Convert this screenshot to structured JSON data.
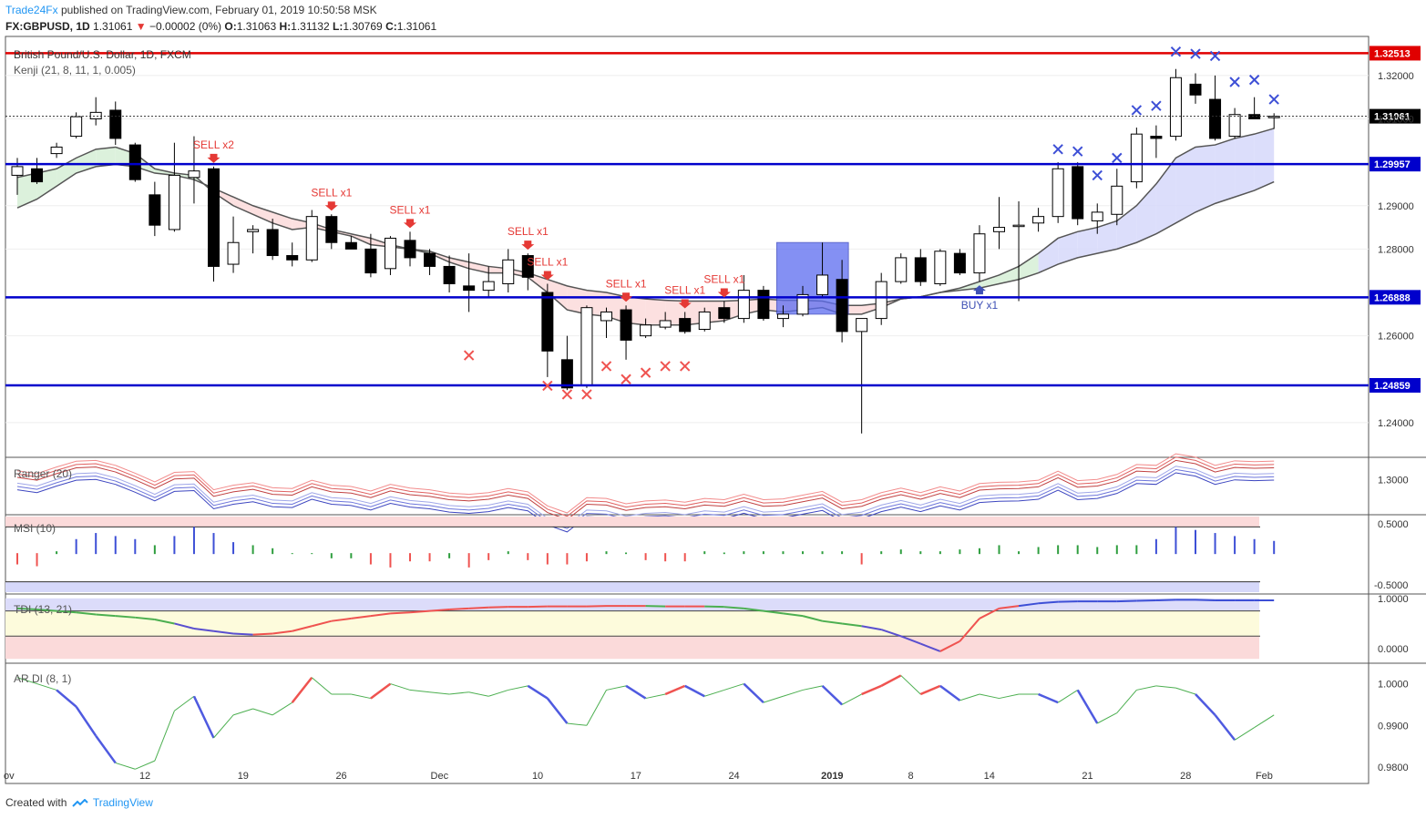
{
  "header": {
    "publisher": "Trade24Fx",
    "published_text": "published on TradingView.com, February 01, 2019 10:50:58 MSK"
  },
  "symbol_line": {
    "symbol": "FX:GBPUSD, 1D",
    "last": "1.31061",
    "change": "−0.00002 (0%)",
    "o_label": "O:",
    "o": "1.31063",
    "h_label": "H:",
    "h": "1.31132",
    "l_label": "L:",
    "l": "1.30769",
    "c_label": "C:",
    "c": "1.31061"
  },
  "footer": {
    "text": "Created with",
    "brand": "TradingView"
  },
  "colors": {
    "up_candle": "#ffffff",
    "down_candle": "#000000",
    "level_line": "#0000cc",
    "resistance_line": "#e00000",
    "sell_signal": "#e53935",
    "buy_signal": "#3f51b5"
  },
  "chart_data": {
    "type": "candlestick",
    "title": "British Pound/U.S. Dollar, 1D, FXCM",
    "indicator_label": "Kenji (21, 8, 11, 1, 0.005)",
    "y_range": [
      1.232,
      1.329
    ],
    "y_ticks": [
      "1.32000",
      "1.31000",
      "1.29000",
      "1.28000",
      "1.26000",
      "1.24000"
    ],
    "x_ticks": [
      "12",
      "19",
      "26",
      "Dec",
      "10",
      "17",
      "24",
      "2019",
      "8",
      "14",
      "21",
      "28",
      "Feb"
    ],
    "x_edge_label": "ov",
    "candles": [
      [
        1.297,
        1.301,
        1.2925,
        1.299
      ],
      [
        1.2985,
        1.301,
        1.295,
        1.2955
      ],
      [
        1.302,
        1.3045,
        1.301,
        1.3035
      ],
      [
        1.306,
        1.3115,
        1.3055,
        1.3105
      ],
      [
        1.31,
        1.315,
        1.3085,
        1.3115
      ],
      [
        1.312,
        1.314,
        1.304,
        1.3055
      ],
      [
        1.304,
        1.3045,
        1.2955,
        1.296
      ],
      [
        1.2925,
        1.2955,
        1.283,
        1.2855
      ],
      [
        1.2845,
        1.3045,
        1.284,
        1.297
      ],
      [
        1.2965,
        1.306,
        1.2905,
        1.298
      ],
      [
        1.2985,
        1.299,
        1.2725,
        1.276
      ],
      [
        1.2765,
        1.2875,
        1.2745,
        1.2815
      ],
      [
        1.284,
        1.2855,
        1.279,
        1.2845
      ],
      [
        1.2845,
        1.287,
        1.2775,
        1.2785
      ],
      [
        1.2785,
        1.2815,
        1.276,
        1.2775
      ],
      [
        1.2775,
        1.289,
        1.277,
        1.2875
      ],
      [
        1.2875,
        1.288,
        1.28,
        1.2815
      ],
      [
        1.2815,
        1.283,
        1.28,
        1.28
      ],
      [
        1.28,
        1.2835,
        1.2735,
        1.2745
      ],
      [
        1.2755,
        1.283,
        1.274,
        1.2825
      ],
      [
        1.282,
        1.284,
        1.276,
        1.278
      ],
      [
        1.279,
        1.28,
        1.274,
        1.276
      ],
      [
        1.276,
        1.2785,
        1.27,
        1.272
      ],
      [
        1.2715,
        1.279,
        1.2655,
        1.2705
      ],
      [
        1.2705,
        1.276,
        1.269,
        1.2725
      ],
      [
        1.272,
        1.28,
        1.27,
        1.2775
      ],
      [
        1.2785,
        1.279,
        1.2705,
        1.2735
      ],
      [
        1.27,
        1.272,
        1.2505,
        1.2565
      ],
      [
        1.2545,
        1.26,
        1.2475,
        1.248
      ],
      [
        1.2485,
        1.267,
        1.248,
        1.2665
      ],
      [
        1.2635,
        1.2665,
        1.2595,
        1.2655
      ],
      [
        1.266,
        1.267,
        1.2545,
        1.259
      ],
      [
        1.26,
        1.264,
        1.2595,
        1.2625
      ],
      [
        1.262,
        1.2655,
        1.2615,
        1.2635
      ],
      [
        1.264,
        1.2655,
        1.2605,
        1.261
      ],
      [
        1.2615,
        1.2665,
        1.261,
        1.2655
      ],
      [
        1.2665,
        1.268,
        1.263,
        1.264
      ],
      [
        1.264,
        1.274,
        1.263,
        1.2705
      ],
      [
        1.2705,
        1.2715,
        1.2635,
        1.264
      ],
      [
        1.264,
        1.267,
        1.262,
        1.265
      ],
      [
        1.265,
        1.2715,
        1.2645,
        1.2695
      ],
      [
        1.2695,
        1.2815,
        1.269,
        1.274
      ],
      [
        1.273,
        1.2775,
        1.2585,
        1.261
      ],
      [
        1.261,
        1.264,
        1.2375,
        1.264
      ],
      [
        1.264,
        1.2745,
        1.2625,
        1.2725
      ],
      [
        1.2725,
        1.279,
        1.272,
        1.278
      ],
      [
        1.278,
        1.28,
        1.2715,
        1.2725
      ],
      [
        1.272,
        1.28,
        1.2715,
        1.2795
      ],
      [
        1.279,
        1.28,
        1.274,
        1.2745
      ],
      [
        1.2745,
        1.2855,
        1.2725,
        1.2835
      ],
      [
        1.284,
        1.292,
        1.28,
        1.285
      ],
      [
        1.2855,
        1.291,
        1.268,
        1.2855
      ],
      [
        1.286,
        1.2895,
        1.284,
        1.2875
      ],
      [
        1.2875,
        1.3,
        1.286,
        1.2985
      ],
      [
        1.299,
        1.3,
        1.2855,
        1.287
      ],
      [
        1.2865,
        1.2905,
        1.2835,
        1.2885
      ],
      [
        1.288,
        1.2985,
        1.2855,
        1.2945
      ],
      [
        1.2955,
        1.308,
        1.294,
        1.3065
      ],
      [
        1.306,
        1.3085,
        1.301,
        1.3055
      ],
      [
        1.306,
        1.3215,
        1.305,
        1.3195
      ],
      [
        1.318,
        1.3205,
        1.3135,
        1.3155
      ],
      [
        1.3145,
        1.32,
        1.305,
        1.3055
      ],
      [
        1.306,
        1.3125,
        1.3055,
        1.311
      ],
      [
        1.311,
        1.315,
        1.31,
        1.31
      ],
      [
        1.3106,
        1.3113,
        1.3077,
        1.3106
      ]
    ],
    "kenji_fast": [
      1.2965,
      1.2975,
      1.2985,
      1.301,
      1.303,
      1.3035,
      1.302,
      1.2985,
      1.2975,
      1.297,
      1.293,
      1.29,
      1.288,
      1.286,
      1.2845,
      1.285,
      1.284,
      1.283,
      1.281,
      1.2805,
      1.28,
      1.279,
      1.277,
      1.2755,
      1.2745,
      1.2745,
      1.2735,
      1.27,
      1.266,
      1.265,
      1.2645,
      1.263,
      1.2625,
      1.2625,
      1.2625,
      1.263,
      1.2635,
      1.265,
      1.266,
      1.2655,
      1.266,
      1.2665,
      1.265,
      1.265,
      1.2665,
      1.2685,
      1.269,
      1.27,
      1.271,
      1.2725,
      1.274,
      1.276,
      1.279,
      1.2825,
      1.284,
      1.285,
      1.2865,
      1.29,
      1.295,
      1.301,
      1.3035,
      1.304,
      1.3055,
      1.3065,
      1.3078
    ],
    "kenji_slow": [
      1.2895,
      1.2915,
      1.2945,
      1.2975,
      1.299,
      1.2995,
      1.299,
      1.2975,
      1.297,
      1.296,
      1.294,
      1.292,
      1.29,
      1.2885,
      1.287,
      1.286,
      1.2845,
      1.2835,
      1.2825,
      1.281,
      1.28,
      1.2795,
      1.278,
      1.277,
      1.276,
      1.2755,
      1.2745,
      1.273,
      1.2715,
      1.2705,
      1.27,
      1.269,
      1.2685,
      1.2682,
      1.268,
      1.268,
      1.268,
      1.2682,
      1.2685,
      1.2682,
      1.2682,
      1.268,
      1.267,
      1.267,
      1.2675,
      1.2685,
      1.269,
      1.27,
      1.2705,
      1.271,
      1.272,
      1.273,
      1.2745,
      1.2765,
      1.278,
      1.279,
      1.28,
      1.2815,
      1.2835,
      1.286,
      1.2885,
      1.2905,
      1.292,
      1.2935,
      1.2955
    ],
    "levels": [
      {
        "value": 1.32513,
        "label": "1.32513",
        "kind": "resistance"
      },
      {
        "value": 1.29957,
        "label": "1.29957",
        "kind": "level"
      },
      {
        "value": 1.26888,
        "label": "1.26888",
        "kind": "level"
      },
      {
        "value": 1.24859,
        "label": "1.24859",
        "kind": "level"
      }
    ],
    "last_price": {
      "value": 1.31061,
      "label": "1.31061"
    },
    "sell_signals": [
      {
        "bar": 10,
        "text": "SELL x2"
      },
      {
        "bar": 16,
        "text": "SELL x1"
      },
      {
        "bar": 20,
        "text": "SELL x1"
      },
      {
        "bar": 26,
        "text": "SELL x1"
      },
      {
        "bar": 27,
        "text": "SELL x1"
      },
      {
        "bar": 31,
        "text": "SELL x1"
      },
      {
        "bar": 34,
        "text": "SELL x1"
      },
      {
        "bar": 36,
        "text": "SELL x1"
      }
    ],
    "buy_signals": [
      {
        "bar": 49,
        "text": "BUY x1"
      }
    ],
    "x_marks_red": [
      [
        23,
        1.2555
      ],
      [
        27,
        1.2485
      ],
      [
        28,
        1.2465
      ],
      [
        29,
        1.2465
      ],
      [
        30,
        1.253
      ],
      [
        31,
        1.25
      ],
      [
        32,
        1.2515
      ],
      [
        33,
        1.253
      ],
      [
        34,
        1.253
      ]
    ],
    "x_marks_blue": [
      [
        53,
        1.303
      ],
      [
        54,
        1.3025
      ],
      [
        55,
        1.297
      ],
      [
        56,
        1.301
      ],
      [
        57,
        1.312
      ],
      [
        58,
        1.313
      ],
      [
        59,
        1.3255
      ],
      [
        60,
        1.325
      ],
      [
        61,
        1.3245
      ],
      [
        62,
        1.3185
      ],
      [
        63,
        1.319
      ],
      [
        64,
        1.3145
      ]
    ],
    "panels": [
      {
        "name": "Ranger (20)",
        "labels": [
          "1.3000"
        ]
      },
      {
        "name": "MSI (10)",
        "labels": [
          "0.5000",
          "-0.5000"
        ]
      },
      {
        "name": "TDI (13, 21)",
        "labels": [
          "1.0000",
          "0.0000"
        ]
      },
      {
        "name": "AR DI (8, 1)",
        "labels": [
          "1.0000",
          "0.9900",
          "0.9800"
        ]
      }
    ],
    "msi": [
      -0.15,
      -0.18,
      0.05,
      0.25,
      0.35,
      0.3,
      0.25,
      0.15,
      0.3,
      0.45,
      0.35,
      0.2,
      0.15,
      0.1,
      0.02,
      0.02,
      -0.05,
      -0.05,
      -0.15,
      -0.2,
      -0.1,
      -0.1,
      -0.05,
      -0.2,
      -0.08,
      0.05,
      -0.08,
      -0.15,
      -0.15,
      -0.1,
      0.05,
      0.03,
      -0.08,
      -0.1,
      -0.1,
      0.05,
      0.03,
      0.05,
      0.05,
      0.05,
      0.05,
      0.05,
      0.05,
      -0.15,
      0.05,
      0.08,
      0.05,
      0.05,
      0.08,
      0.1,
      0.15,
      0.05,
      0.12,
      0.15,
      0.15,
      0.12,
      0.15,
      0.15,
      0.25,
      0.45,
      0.4,
      0.35,
      0.3,
      0.25,
      0.22
    ],
    "tdi": [
      0.8,
      0.78,
      0.75,
      0.72,
      0.68,
      0.65,
      0.62,
      0.58,
      0.5,
      0.4,
      0.35,
      0.3,
      0.28,
      0.3,
      0.35,
      0.45,
      0.55,
      0.6,
      0.65,
      0.7,
      0.72,
      0.75,
      0.78,
      0.8,
      0.82,
      0.83,
      0.83,
      0.84,
      0.84,
      0.84,
      0.85,
      0.85,
      0.85,
      0.84,
      0.84,
      0.84,
      0.83,
      0.8,
      0.75,
      0.7,
      0.65,
      0.55,
      0.5,
      0.45,
      0.38,
      0.25,
      0.1,
      -0.05,
      0.15,
      0.6,
      0.8,
      0.85,
      0.9,
      0.93,
      0.94,
      0.94,
      0.94,
      0.95,
      0.96,
      0.97,
      0.97,
      0.96,
      0.96,
      0.96,
      0.96
    ],
    "ardi": [
      1.0015,
      1.0,
      0.9985,
      0.9945,
      0.9875,
      0.981,
      0.9795,
      0.9815,
      0.9935,
      0.997,
      0.987,
      0.9925,
      0.994,
      0.9925,
      0.9955,
      1.0015,
      0.9975,
      0.9975,
      0.9965,
      1.0,
      0.9985,
      0.998,
      0.9975,
      0.998,
      0.997,
      0.9985,
      0.9995,
      0.9965,
      0.9905,
      0.99,
      0.9985,
      0.9995,
      0.9965,
      0.9975,
      0.9995,
      0.997,
      0.9985,
      1.0,
      0.9955,
      0.997,
      0.9985,
      0.9995,
      0.995,
      0.9975,
      0.9995,
      1.002,
      0.9975,
      0.9995,
      0.996,
      0.9975,
      0.9965,
      0.9975,
      0.9975,
      0.9955,
      0.9985,
      0.9905,
      0.993,
      0.9985,
      0.9995,
      0.999,
      0.9975,
      0.9925,
      0.9865,
      0.9895,
      0.9925
    ]
  }
}
